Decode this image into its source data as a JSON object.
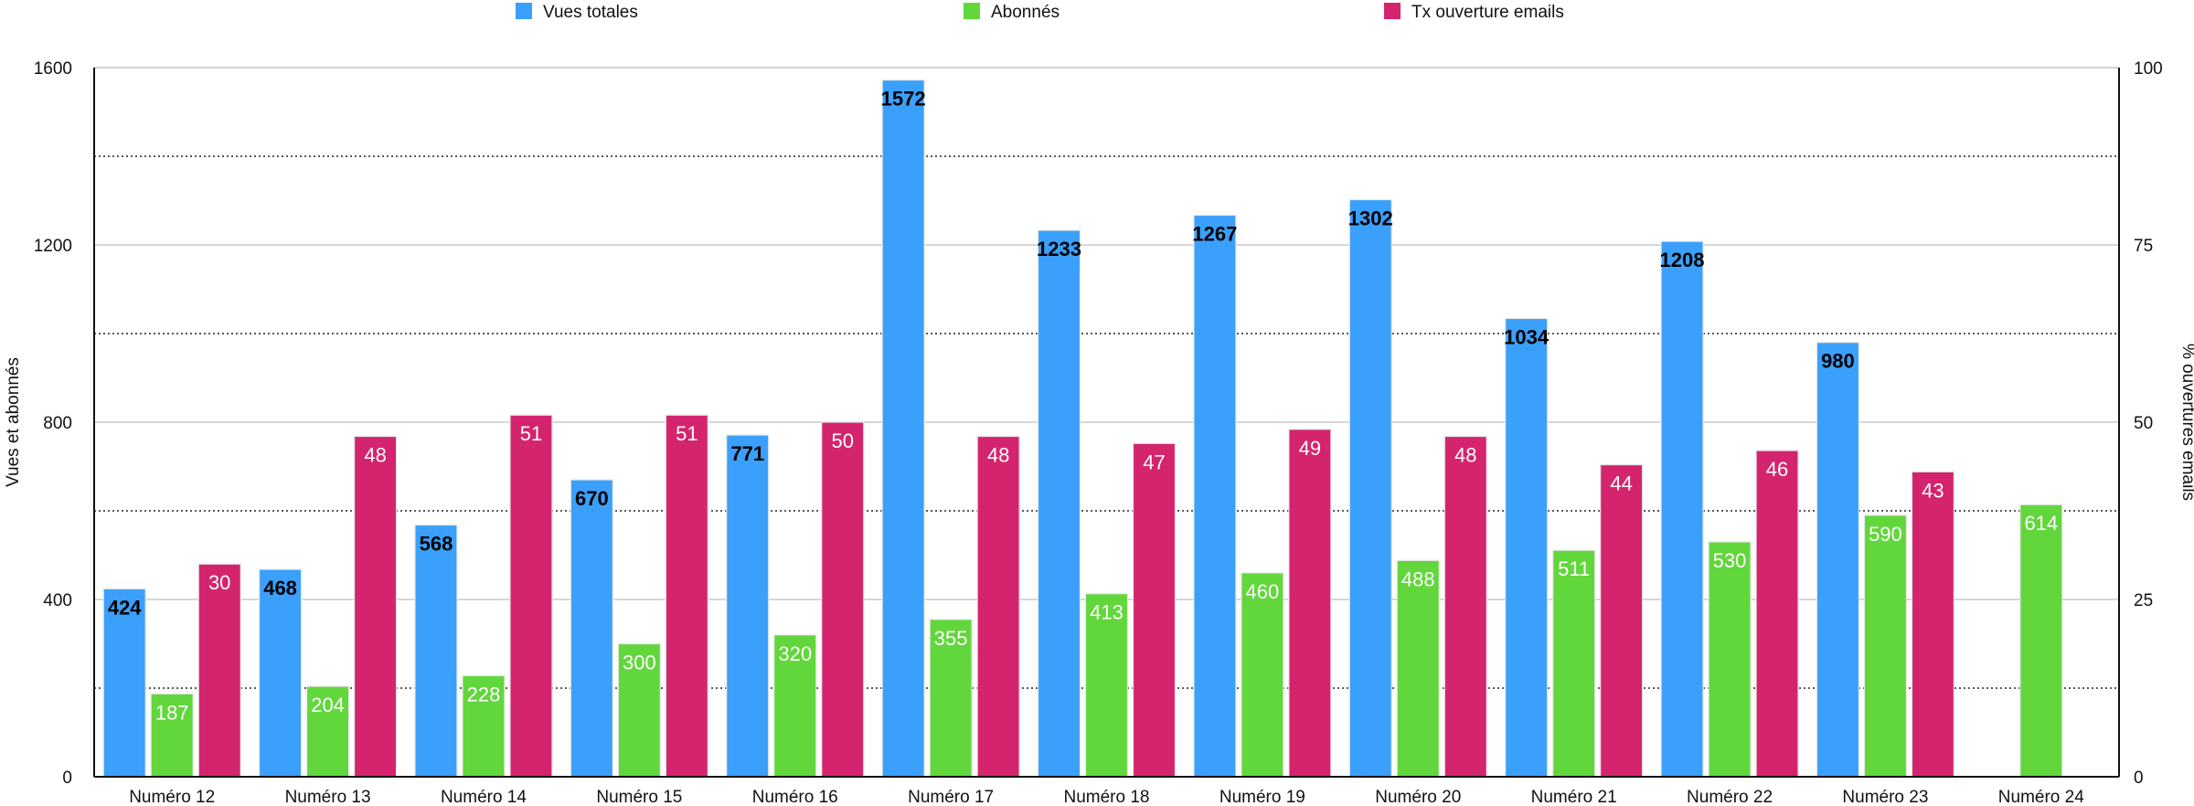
{
  "chart_data": {
    "type": "bar",
    "categories": [
      "Numéro 12",
      "Numéro 13",
      "Numéro 14",
      "Numéro 15",
      "Numéro 16",
      "Numéro 17",
      "Numéro 18",
      "Numéro 19",
      "Numéro 20",
      "Numéro 21",
      "Numéro 22",
      "Numéro 23",
      "Numéro 24"
    ],
    "series": [
      {
        "name": "Vues totales",
        "axis": "left",
        "color": "#3aa0fb",
        "label_color": "#000000",
        "label_bold": true,
        "values": [
          424,
          468,
          568,
          670,
          771,
          1572,
          1233,
          1267,
          1302,
          1034,
          1208,
          980,
          null
        ]
      },
      {
        "name": "Abonnés",
        "axis": "left",
        "color": "#62d73c",
        "label_color": "#ffffff",
        "label_bold": false,
        "values": [
          187,
          204,
          228,
          300,
          320,
          355,
          413,
          460,
          488,
          511,
          530,
          590,
          614
        ]
      },
      {
        "name": "Tx ouverture emails",
        "axis": "right",
        "color": "#d5246e",
        "label_color": "#ffffff",
        "label_bold": false,
        "values": [
          30,
          48,
          51,
          51,
          50,
          48,
          47,
          49,
          48,
          44,
          46,
          43,
          null
        ]
      }
    ],
    "ylabel": "Vues et abonnés",
    "ylabel_right": "% ouvertures emails",
    "ylim": [
      0,
      1600
    ],
    "ylim_right": [
      0,
      100
    ],
    "yticks": [
      "0",
      "400",
      "800",
      "1200",
      "1600"
    ],
    "yticks_right": [
      "0",
      "25",
      "50",
      "75",
      "100"
    ],
    "grid": true,
    "legend_position": "top"
  }
}
